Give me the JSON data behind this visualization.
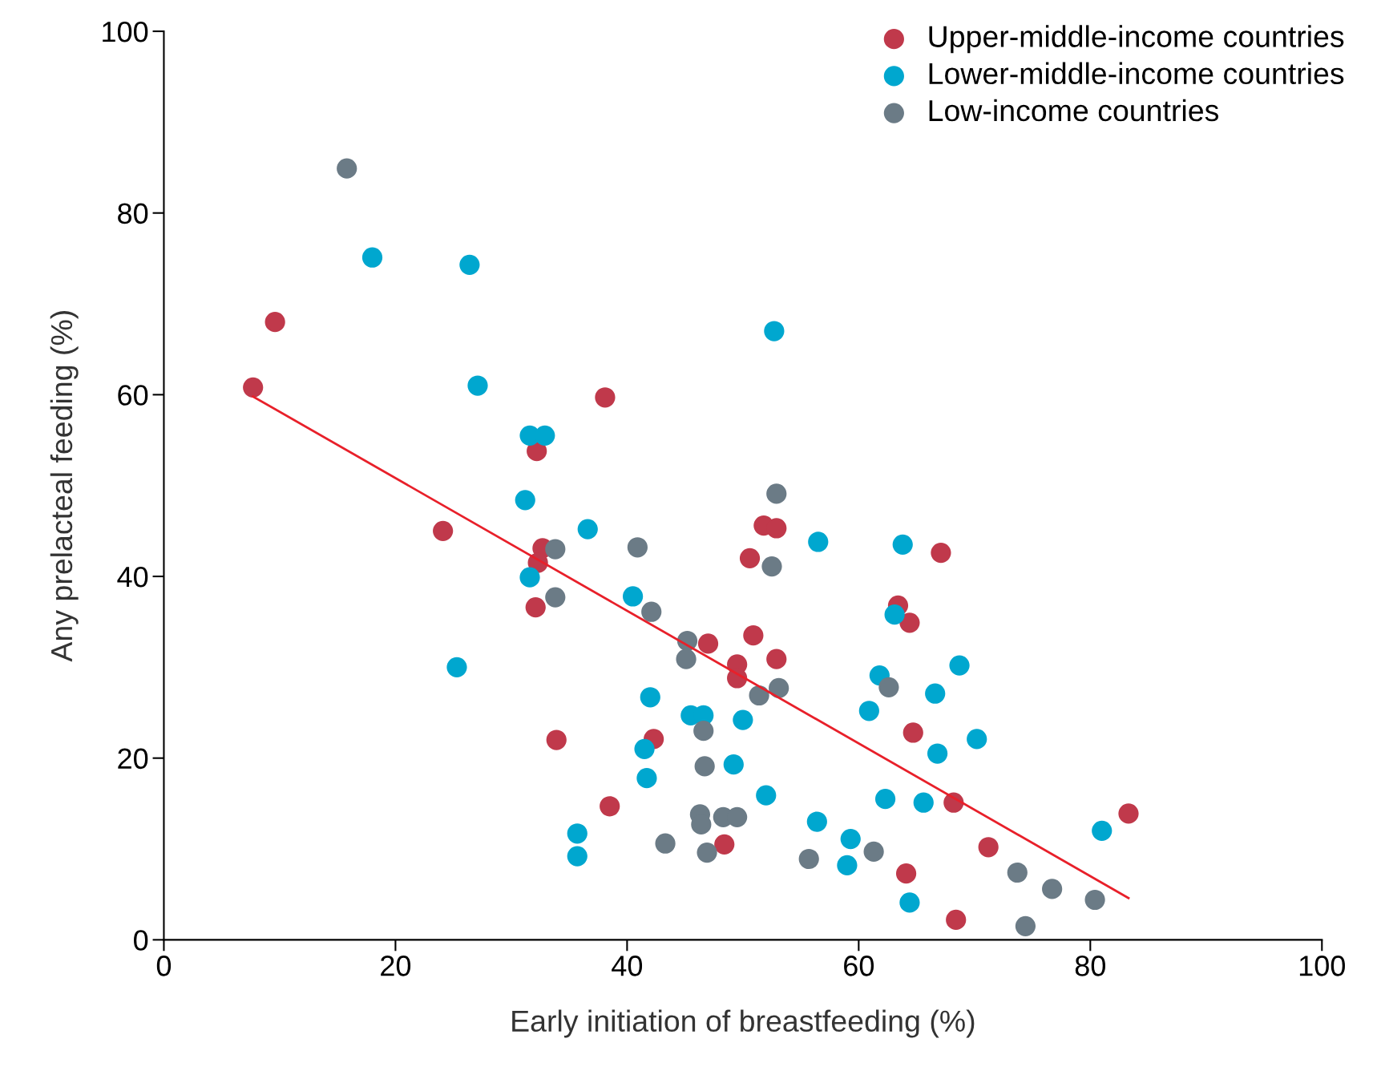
{
  "chart_data": {
    "type": "scatter",
    "xlabel": "Early initiation of breastfeeding (%)",
    "ylabel": "Any prelacteal feeding (%)",
    "xlim": [
      0,
      100
    ],
    "ylim": [
      0,
      100
    ],
    "xticks": [
      0,
      20,
      40,
      60,
      80,
      100
    ],
    "yticks": [
      0,
      20,
      40,
      60,
      80,
      100
    ],
    "grid": false,
    "legend": "top right",
    "marker": "circle",
    "series": [
      {
        "name": "Upper-middle-income countries",
        "color": "#c0394b",
        "x": [
          7.7,
          9.6,
          24.1,
          32.2,
          32.7,
          32.3,
          32.1,
          33.9,
          38.1,
          38.5,
          42.3,
          47.0,
          48.4,
          49.5,
          49.5,
          50.9,
          50.6,
          51.8,
          52.9,
          52.9,
          63.4,
          64.4,
          64.7,
          64.1,
          67.1,
          68.2,
          68.4,
          71.2,
          83.3
        ],
        "values": [
          60.8,
          68.0,
          45.0,
          53.8,
          43.1,
          41.5,
          36.6,
          22.0,
          59.7,
          14.7,
          22.1,
          32.6,
          10.5,
          30.3,
          28.8,
          33.5,
          42.0,
          45.6,
          45.3,
          30.9,
          36.8,
          34.9,
          22.8,
          7.3,
          42.6,
          15.1,
          2.2,
          10.2,
          13.9
        ]
      },
      {
        "name": "Lower-middle-income countries",
        "color": "#00a7cf",
        "x": [
          18.0,
          26.4,
          27.1,
          25.3,
          31.6,
          32.9,
          31.2,
          31.6,
          36.6,
          35.7,
          35.7,
          40.5,
          42.0,
          41.5,
          41.7,
          45.5,
          46.6,
          50.0,
          49.2,
          52.0,
          52.7,
          56.5,
          56.4,
          59.3,
          59.0,
          60.9,
          61.8,
          62.3,
          63.1,
          63.8,
          64.4,
          65.6,
          66.6,
          66.8,
          68.7,
          70.2,
          81.0
        ],
        "values": [
          75.1,
          74.3,
          61.0,
          30.0,
          55.5,
          55.5,
          48.4,
          39.9,
          45.2,
          11.7,
          9.2,
          37.8,
          26.7,
          21.0,
          17.8,
          24.7,
          24.7,
          24.2,
          19.3,
          15.9,
          67.0,
          43.8,
          13.0,
          11.1,
          8.2,
          25.2,
          29.1,
          15.5,
          35.8,
          43.5,
          4.1,
          15.1,
          27.1,
          20.5,
          30.2,
          22.1,
          12.0
        ]
      },
      {
        "name": "Low-income countries",
        "color": "#6b7b86",
        "x": [
          15.8,
          33.8,
          33.8,
          40.9,
          42.1,
          45.2,
          45.1,
          46.6,
          46.7,
          46.3,
          46.4,
          46.9,
          48.3,
          49.5,
          43.3,
          51.4,
          52.5,
          52.9,
          53.1,
          55.7,
          61.3,
          62.6,
          73.7,
          74.4,
          76.7,
          80.4
        ],
        "values": [
          84.9,
          43.0,
          37.7,
          43.2,
          36.1,
          32.9,
          30.9,
          23.0,
          19.1,
          13.8,
          12.7,
          9.6,
          13.5,
          13.5,
          10.6,
          26.9,
          41.1,
          49.1,
          27.7,
          8.9,
          9.7,
          27.8,
          7.4,
          1.5,
          5.6,
          4.4
        ]
      },
      {
        "type": "line",
        "color": "#e8202a",
        "marker": "none",
        "x": [
          7.7,
          83.3
        ],
        "values": [
          59.8,
          4.6
        ]
      }
    ]
  }
}
